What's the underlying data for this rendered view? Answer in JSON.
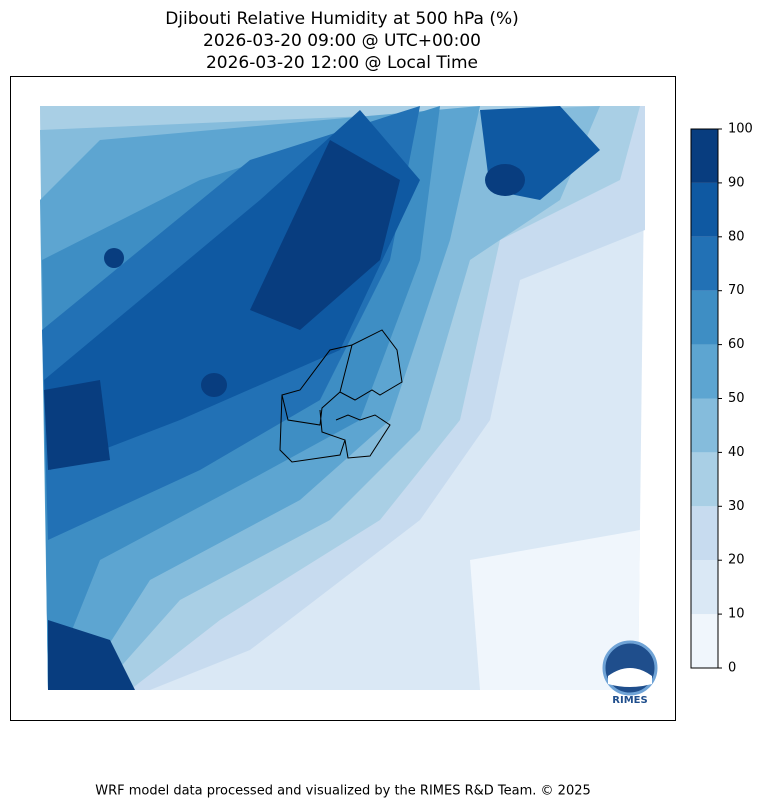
{
  "title": [
    "Djibouti Relative Humidity at 500 hPa (%)",
    "2026-03-20 09:00 @ UTC+00:00",
    "2026-03-20 12:00 @ Local Time"
  ],
  "colorbar": {
    "lim": [
      0,
      100
    ],
    "ticks": [
      0,
      10,
      20,
      30,
      40,
      50,
      60,
      70,
      80,
      90,
      100
    ],
    "colors": [
      "#f0f6fc",
      "#dae8f5",
      "#c7dbef",
      "#a9cfe5",
      "#85bcdc",
      "#5da5d1",
      "#3e8ec4",
      "#2271b5",
      "#0f59a2",
      "#083d7f"
    ]
  },
  "logo": "RIMES",
  "footer": "WRF model data processed and visualized by the RIMES R&D Team. © 2025"
}
